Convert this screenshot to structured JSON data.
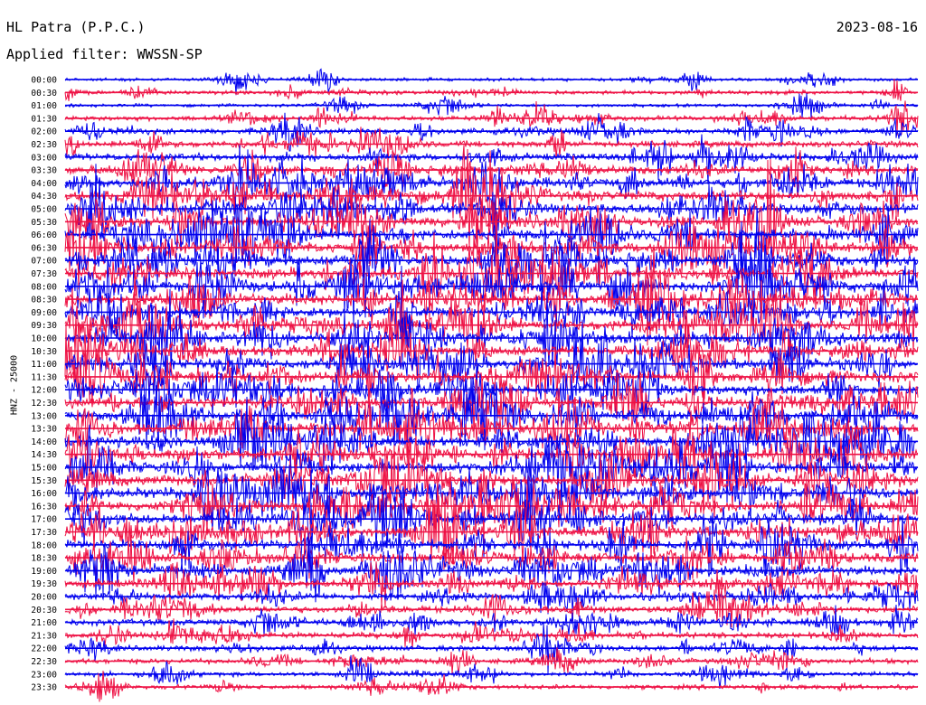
{
  "header": {
    "station": "HL Patra (P.P.C.)",
    "filter": "Applied filter: WWSSN-SP",
    "date": "2023-08-16"
  },
  "chart_data": {
    "type": "line",
    "title": "HL Patra (P.P.C.)",
    "subtitle": "Applied filter: WWSSN-SP",
    "date": "2023-08-16",
    "ylabel": "HNZ - 25000",
    "row_labels": [
      "00:00",
      "00:30",
      "01:00",
      "01:30",
      "02:00",
      "02:30",
      "03:00",
      "03:30",
      "04:00",
      "04:30",
      "05:00",
      "05:30",
      "06:00",
      "06:30",
      "07:00",
      "07:30",
      "08:00",
      "08:30",
      "09:00",
      "09:30",
      "10:00",
      "10:30",
      "11:00",
      "11:30",
      "12:00",
      "12:30",
      "13:00",
      "13:30",
      "14:00",
      "14:30",
      "15:00",
      "15:30",
      "16:00",
      "16:30",
      "17:00",
      "17:30",
      "18:00",
      "18:30",
      "19:00",
      "19:30",
      "20:00",
      "20:30",
      "21:00",
      "21:30",
      "22:00",
      "22:30",
      "23:00",
      "23:30"
    ],
    "colors": [
      "#0000ee",
      "#ee1144"
    ],
    "row_activity": [
      0.15,
      0.25,
      0.15,
      0.35,
      0.45,
      0.5,
      0.6,
      0.75,
      0.85,
      0.9,
      0.95,
      1.0,
      1.0,
      1.0,
      1.0,
      1.0,
      1.0,
      1.0,
      1.0,
      1.0,
      1.0,
      1.0,
      1.0,
      1.0,
      1.0,
      1.0,
      1.0,
      1.0,
      1.0,
      1.0,
      1.0,
      1.0,
      1.0,
      1.0,
      0.95,
      0.95,
      0.9,
      0.85,
      0.8,
      0.7,
      0.6,
      0.55,
      0.5,
      0.45,
      0.4,
      0.35,
      0.3,
      0.3
    ],
    "grid": false
  }
}
